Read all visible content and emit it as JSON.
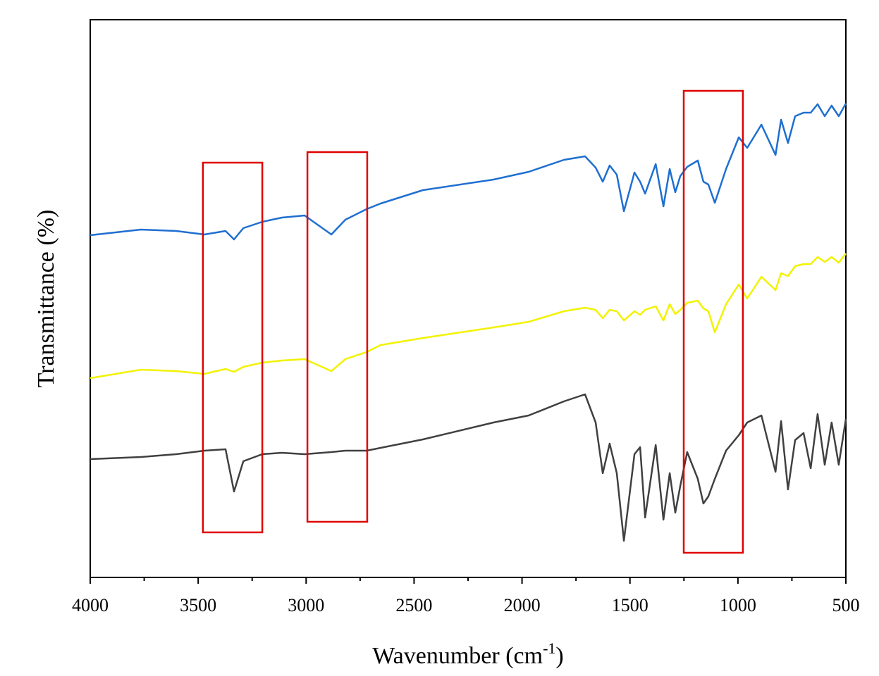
{
  "chart_data": {
    "type": "line",
    "xlabel": {
      "text": "Wavenumber (cm",
      "superscript": "-1",
      "suffix": ")"
    },
    "ylabel": "Transmittance (%)",
    "x": [
      4000,
      3765,
      3602,
      3471,
      3373,
      3334,
      3291,
      3203,
      3112,
      3007,
      2883,
      2818,
      2720,
      2655,
      2459,
      2132,
      1969,
      1806,
      1708,
      1659,
      1626,
      1594,
      1561,
      1528,
      1479,
      1453,
      1430,
      1381,
      1345,
      1316,
      1290,
      1267,
      1235,
      1186,
      1160,
      1137,
      1107,
      1055,
      996,
      957,
      891,
      826,
      800,
      768,
      735,
      696,
      663,
      631,
      598,
      566,
      533,
      500
    ],
    "series": [
      {
        "color": "#1f6fd0",
        "values": [
          486,
          494,
          492,
          487,
          492,
          480,
          496,
          505,
          511,
          514,
          487,
          508,
          523,
          531,
          550,
          565,
          576,
          593,
          598,
          582,
          562,
          585,
          572,
          520,
          575,
          562,
          545,
          587,
          527,
          580,
          547,
          570,
          583,
          592,
          562,
          558,
          532,
          580,
          625,
          610,
          643,
          600,
          650,
          617,
          655,
          660,
          660,
          672,
          655,
          670,
          655,
          673
        ]
      },
      {
        "color": "#f2f200",
        "values": [
          283,
          295,
          293,
          289,
          296,
          292,
          299,
          305,
          308,
          310,
          293,
          310,
          320,
          330,
          340,
          355,
          363,
          378,
          383,
          380,
          368,
          380,
          378,
          365,
          378,
          373,
          380,
          385,
          365,
          388,
          374,
          380,
          390,
          393,
          382,
          378,
          348,
          388,
          416,
          396,
          427,
          408,
          432,
          428,
          442,
          445,
          445,
          455,
          448,
          455,
          447,
          460
        ]
      },
      {
        "color": "#404040",
        "values": [
          168,
          171,
          175,
          180,
          182,
          122,
          165,
          175,
          177,
          175,
          178,
          180,
          180,
          184,
          196,
          220,
          230,
          250,
          260,
          220,
          148,
          190,
          148,
          52,
          175,
          185,
          85,
          188,
          82,
          148,
          92,
          130,
          178,
          140,
          105,
          115,
          140,
          180,
          202,
          220,
          230,
          150,
          222,
          125,
          195,
          205,
          155,
          232,
          160,
          220,
          160,
          225
        ]
      }
    ],
    "highlight_regions": [
      {
        "xlim": [
          3478,
          3203
        ],
        "ylim": [
          64,
          589
        ]
      },
      {
        "xlim": [
          2994,
          2717
        ],
        "ylim": [
          79,
          604
        ]
      },
      {
        "xlim": [
          1251,
          977
        ],
        "ylim": [
          35,
          691
        ]
      }
    ],
    "highlight_color": "#e00000",
    "xlim": [
      4000,
      500
    ],
    "xticks": [
      4000,
      3500,
      3000,
      2500,
      2000,
      1500,
      1000,
      500
    ],
    "xminor_ticks": [
      3750,
      3250,
      2750,
      2250,
      1750,
      1250,
      750
    ],
    "ylim": [
      0,
      792
    ]
  }
}
